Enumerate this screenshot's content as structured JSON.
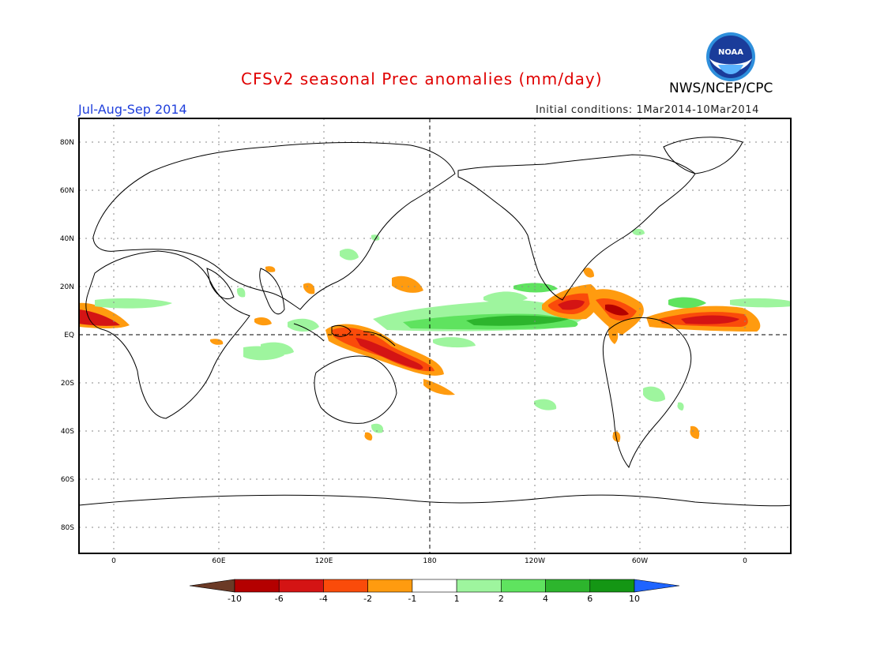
{
  "header": {
    "title": "CFSv2 seasonal Prec anomalies (mm/day)",
    "org": "NWS/NCEP/CPC",
    "season": "Jul-Aug-Sep 2014",
    "initial_conditions": "Initial conditions: 1Mar2014-10Mar2014",
    "logo_text": "NOAA"
  },
  "axes": {
    "lat_labels": [
      "80N",
      "60N",
      "40N",
      "20N",
      "EQ",
      "20S",
      "40S",
      "60S",
      "80S"
    ],
    "lon_labels": [
      "0",
      "60E",
      "120E",
      "180",
      "120W",
      "60W",
      "0"
    ]
  },
  "colorbar": {
    "labels": [
      "-10",
      "-6",
      "-4",
      "-2",
      "-1",
      "1",
      "2",
      "4",
      "6",
      "10"
    ],
    "colors": [
      "#6b3a26",
      "#b40000",
      "#d41414",
      "#fa4b0a",
      "#ff9b0f",
      "#ffffff",
      "#9ef59e",
      "#5fe35f",
      "#2db52d",
      "#149614",
      "#1e64ff"
    ]
  }
}
